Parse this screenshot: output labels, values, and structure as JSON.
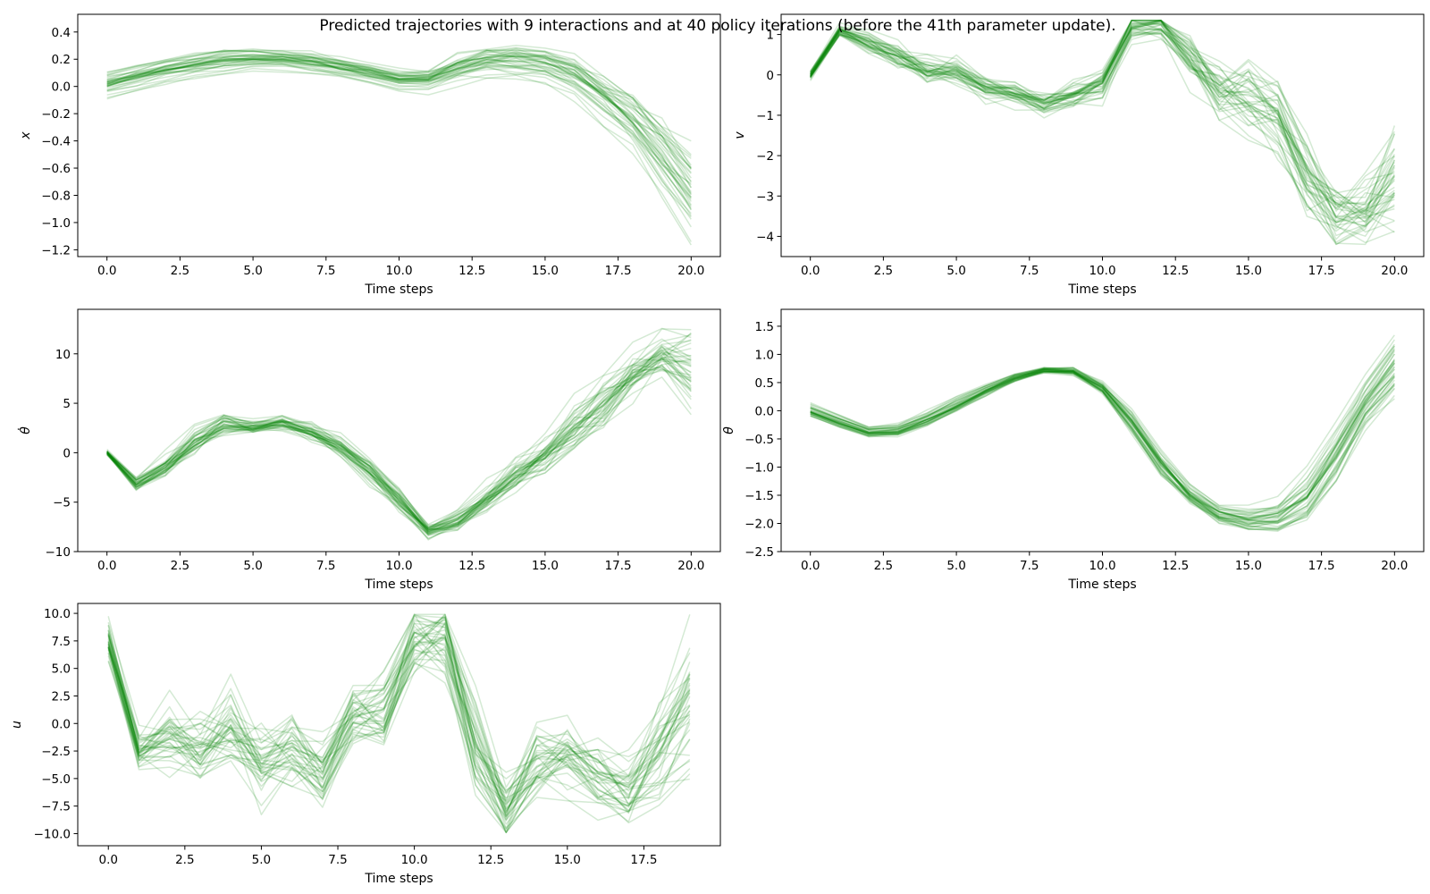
{
  "figure": {
    "suptitle": "Predicted trajectories with 9 interactions and at 40 policy iterations (before the 41th parameter update).",
    "line_color": "#008000",
    "line_opacity": 0.17
  },
  "chart_data": [
    {
      "type": "line",
      "name": "x",
      "ylabel": "x",
      "xlabel": "Time steps",
      "xlim": [
        -1,
        21
      ],
      "ylim": [
        -1.25,
        0.53
      ],
      "xticks": [
        0,
        2.5,
        5,
        7.5,
        10,
        12.5,
        15,
        17.5,
        20
      ],
      "xtick_labels": [
        "0.0",
        "2.5",
        "5.0",
        "7.5",
        "10.0",
        "12.5",
        "15.0",
        "17.5",
        "20.0"
      ],
      "yticks": [
        -1.2,
        -1.0,
        -0.8,
        -0.6,
        -0.4,
        -0.2,
        0.0,
        0.2,
        0.4
      ],
      "ytick_labels": [
        "−1.2",
        "−1.0",
        "−0.8",
        "−0.6",
        "−0.4",
        "−0.2",
        "0.0",
        "0.2",
        "0.4"
      ],
      "n_trajectories": 40,
      "mean": [
        0.03,
        0.08,
        0.13,
        0.17,
        0.2,
        0.21,
        0.21,
        0.19,
        0.15,
        0.11,
        0.06,
        0.06,
        0.14,
        0.2,
        0.21,
        0.18,
        0.1,
        -0.05,
        -0.22,
        -0.47,
        -0.75
      ],
      "spread": [
        0.09,
        0.09,
        0.09,
        0.09,
        0.09,
        0.08,
        0.07,
        0.07,
        0.07,
        0.07,
        0.07,
        0.08,
        0.1,
        0.11,
        0.12,
        0.13,
        0.14,
        0.16,
        0.2,
        0.25,
        0.3
      ],
      "noise": [
        0.01,
        0.01,
        0.01,
        0.01,
        0.01,
        0.01,
        0.01,
        0.01,
        0.01,
        0.01,
        0.01,
        0.01,
        0.02,
        0.02,
        0.02,
        0.02,
        0.02,
        0.03,
        0.03,
        0.04,
        0.05
      ],
      "clip": [
        -1.18,
        0.44
      ]
    },
    {
      "type": "line",
      "name": "v",
      "ylabel": "v",
      "xlabel": "Time steps",
      "xlim": [
        -1,
        21
      ],
      "ylim": [
        -4.5,
        1.5
      ],
      "xticks": [
        0,
        2.5,
        5,
        7.5,
        10,
        12.5,
        15,
        17.5,
        20
      ],
      "xtick_labels": [
        "0.0",
        "2.5",
        "5.0",
        "7.5",
        "10.0",
        "12.5",
        "15.0",
        "17.5",
        "20.0"
      ],
      "yticks": [
        -4,
        -3,
        -2,
        -1,
        0,
        1
      ],
      "ytick_labels": [
        "−4",
        "−3",
        "−2",
        "−1",
        "0",
        "1"
      ],
      "n_trajectories": 40,
      "mean": [
        0.0,
        1.1,
        0.8,
        0.5,
        0.1,
        0.1,
        -0.3,
        -0.45,
        -0.7,
        -0.5,
        -0.2,
        1.2,
        1.25,
        0.4,
        -0.3,
        -0.5,
        -1.0,
        -2.5,
        -3.4,
        -3.5,
        -2.5
      ],
      "spread": [
        0.1,
        0.15,
        0.2,
        0.25,
        0.25,
        0.25,
        0.2,
        0.2,
        0.2,
        0.25,
        0.35,
        0.3,
        0.3,
        0.45,
        0.5,
        0.6,
        0.7,
        0.8,
        0.6,
        0.55,
        0.9
      ],
      "noise": [
        0.03,
        0.05,
        0.08,
        0.12,
        0.15,
        0.15,
        0.1,
        0.1,
        0.1,
        0.12,
        0.15,
        0.1,
        0.1,
        0.2,
        0.3,
        0.3,
        0.3,
        0.3,
        0.3,
        0.3,
        0.4
      ],
      "clip": [
        -4.2,
        1.35
      ]
    },
    {
      "type": "line",
      "name": "theta_dot",
      "ylabel": "θ̇",
      "xlabel": "Time steps",
      "xlim": [
        -1,
        21
      ],
      "ylim": [
        -10,
        14.5
      ],
      "xticks": [
        0,
        2.5,
        5,
        7.5,
        10,
        12.5,
        15,
        17.5,
        20
      ],
      "xtick_labels": [
        "0.0",
        "2.5",
        "5.0",
        "7.5",
        "10.0",
        "12.5",
        "15.0",
        "17.5",
        "20.0"
      ],
      "yticks": [
        -10,
        -5,
        0,
        5,
        10
      ],
      "ytick_labels": [
        "−10",
        "−5",
        "0",
        "5",
        "10"
      ],
      "n_trajectories": 40,
      "mean": [
        0.0,
        -3.2,
        -1.5,
        1.0,
        2.8,
        2.6,
        3.0,
        2.0,
        0.5,
        -2.0,
        -5.0,
        -8.0,
        -7.0,
        -4.8,
        -2.5,
        -0.5,
        2.0,
        4.5,
        7.5,
        9.5,
        8.5
      ],
      "spread": [
        0.1,
        0.5,
        0.8,
        1.0,
        0.8,
        0.5,
        0.4,
        0.6,
        1.0,
        1.3,
        1.3,
        0.6,
        0.8,
        1.2,
        1.6,
        2.0,
        2.3,
        2.4,
        2.3,
        2.0,
        4.0
      ],
      "noise": [
        0.1,
        0.2,
        0.4,
        0.4,
        0.4,
        0.3,
        0.3,
        0.3,
        0.3,
        0.4,
        0.4,
        0.3,
        0.4,
        0.5,
        0.6,
        0.6,
        0.7,
        0.7,
        0.8,
        1.0,
        1.5
      ],
      "clip": [
        -9.0,
        13.5
      ]
    },
    {
      "type": "line",
      "name": "theta",
      "ylabel": "θ",
      "xlabel": "Time steps",
      "xlim": [
        -1,
        21
      ],
      "ylim": [
        -2.5,
        1.8
      ],
      "xticks": [
        0,
        2.5,
        5,
        7.5,
        10,
        12.5,
        15,
        17.5,
        20
      ],
      "xtick_labels": [
        "0.0",
        "2.5",
        "5.0",
        "7.5",
        "10.0",
        "12.5",
        "15.0",
        "17.5",
        "20.0"
      ],
      "yticks": [
        -2.5,
        -2.0,
        -1.5,
        -1.0,
        -0.5,
        0.0,
        0.5,
        1.0,
        1.5
      ],
      "ytick_labels": [
        "−2.5",
        "−2.0",
        "−1.5",
        "−1.0",
        "−0.5",
        "0.0",
        "0.5",
        "1.0",
        "1.5"
      ],
      "n_trajectories": 40,
      "mean": [
        0.0,
        -0.2,
        -0.38,
        -0.35,
        -0.15,
        0.1,
        0.35,
        0.58,
        0.72,
        0.7,
        0.4,
        -0.2,
        -0.95,
        -1.5,
        -1.85,
        -1.95,
        -1.9,
        -1.55,
        -0.8,
        0.1,
        0.75
      ],
      "spread": [
        0.1,
        0.1,
        0.08,
        0.1,
        0.12,
        0.12,
        0.1,
        0.06,
        0.05,
        0.06,
        0.12,
        0.2,
        0.22,
        0.18,
        0.16,
        0.2,
        0.3,
        0.45,
        0.5,
        0.45,
        0.55
      ],
      "noise": [
        0.01,
        0.01,
        0.02,
        0.02,
        0.02,
        0.02,
        0.02,
        0.02,
        0.02,
        0.02,
        0.03,
        0.03,
        0.04,
        0.04,
        0.04,
        0.04,
        0.05,
        0.05,
        0.06,
        0.06,
        0.08
      ],
      "clip": [
        -2.3,
        1.65
      ]
    },
    {
      "type": "line",
      "name": "u",
      "ylabel": "u",
      "xlabel": "Time steps",
      "xlim": [
        -1,
        20
      ],
      "ylim": [
        -11.1,
        10.9
      ],
      "xticks": [
        0,
        2.5,
        5,
        7.5,
        10,
        12.5,
        15,
        17.5
      ],
      "xtick_labels": [
        "0.0",
        "2.5",
        "5.0",
        "7.5",
        "10.0",
        "12.5",
        "15.0",
        "17.5"
      ],
      "yticks": [
        -10.0,
        -7.5,
        -5.0,
        -2.5,
        0.0,
        2.5,
        5.0,
        7.5,
        10.0
      ],
      "ytick_labels": [
        "−10.0",
        "−7.5",
        "−5.0",
        "−2.5",
        "0.0",
        "2.5",
        "5.0",
        "7.5",
        "10.0"
      ],
      "n_trajectories": 40,
      "mean": [
        7.5,
        -2.5,
        -1.5,
        -2.0,
        -0.5,
        -3.5,
        -2.5,
        -4.5,
        0.5,
        1.0,
        7.5,
        7.5,
        -2.0,
        -8.0,
        -4.0,
        -3.0,
        -5.0,
        -6.0,
        -2.0,
        2.0
      ],
      "spread": [
        1.8,
        1.0,
        2.0,
        2.3,
        2.5,
        2.5,
        2.3,
        2.5,
        2.5,
        2.5,
        2.5,
        2.5,
        4.0,
        2.5,
        3.0,
        3.0,
        2.5,
        2.5,
        4.0,
        5.5
      ],
      "noise": [
        0.5,
        0.8,
        1.3,
        1.5,
        1.5,
        1.5,
        1.3,
        1.3,
        1.3,
        1.5,
        1.5,
        1.5,
        1.8,
        1.3,
        1.5,
        1.5,
        1.3,
        1.3,
        1.5,
        1.8
      ],
      "clip": [
        -9.9,
        9.9
      ]
    }
  ]
}
